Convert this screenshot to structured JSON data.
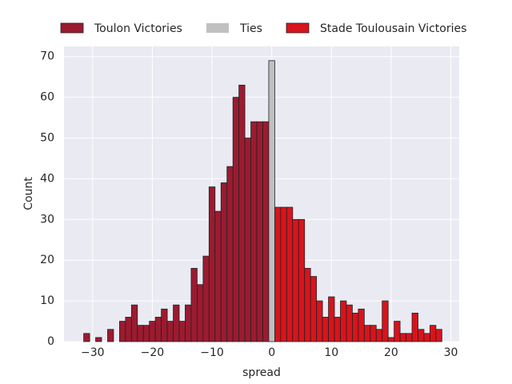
{
  "chart_data": {
    "type": "histogram",
    "xlabel": "spread",
    "ylabel": "Count",
    "xlim": [
      -34.8,
      31.4
    ],
    "ylim": [
      0,
      72.5
    ],
    "xticks": [
      {
        "value": -30,
        "label": "−30"
      },
      {
        "value": -20,
        "label": "−20"
      },
      {
        "value": -10,
        "label": "−10"
      },
      0,
      10,
      20,
      30
    ],
    "yticks": [
      0,
      10,
      20,
      30,
      40,
      50,
      60,
      70
    ],
    "grid": true,
    "legend": "top",
    "series": [
      {
        "name": "Toulon Victories",
        "color": "#9b1b30",
        "bins": [
          -31.5,
          -30.5,
          -29.5,
          -28.5,
          -27.5,
          -26.5,
          -25.5,
          -24.5,
          -23.5,
          -22.5,
          -21.5,
          -20.5,
          -19.5,
          -18.5,
          -17.5,
          -16.5,
          -15.5,
          -14.5,
          -13.5,
          -12.5,
          -11.5,
          -10.5,
          -9.5,
          -8.5,
          -7.5,
          -6.5,
          -5.5,
          -4.5,
          -3.5,
          -2.5,
          -1.5,
          -0.5
        ],
        "values": [
          2,
          0,
          1,
          0,
          3,
          0,
          5,
          6,
          9,
          4,
          4,
          5,
          6,
          8,
          5,
          9,
          5,
          9,
          18,
          14,
          21,
          38,
          32,
          39,
          43,
          60,
          63,
          50,
          54,
          54,
          54
        ]
      },
      {
        "name": "Ties",
        "color": "#c0c0c0",
        "bins": [
          -0.5,
          0.5
        ],
        "values": [
          69
        ]
      },
      {
        "name": "Stade Toulousain Victories",
        "color": "#d7141c",
        "bins": [
          0.5,
          1.5,
          2.5,
          3.5,
          4.5,
          5.5,
          6.5,
          7.5,
          8.5,
          9.5,
          10.5,
          11.5,
          12.5,
          13.5,
          14.5,
          15.5,
          16.5,
          17.5,
          18.5,
          19.5,
          20.5,
          21.5,
          22.5,
          23.5,
          24.5,
          25.5,
          26.5,
          27.5,
          28.5
        ],
        "values": [
          33,
          33,
          33,
          30,
          30,
          18,
          16,
          10,
          6,
          11,
          6,
          10,
          9,
          7,
          8,
          4,
          4,
          3,
          10,
          1,
          5,
          2,
          2,
          7,
          3,
          2,
          4,
          3
        ]
      }
    ]
  }
}
